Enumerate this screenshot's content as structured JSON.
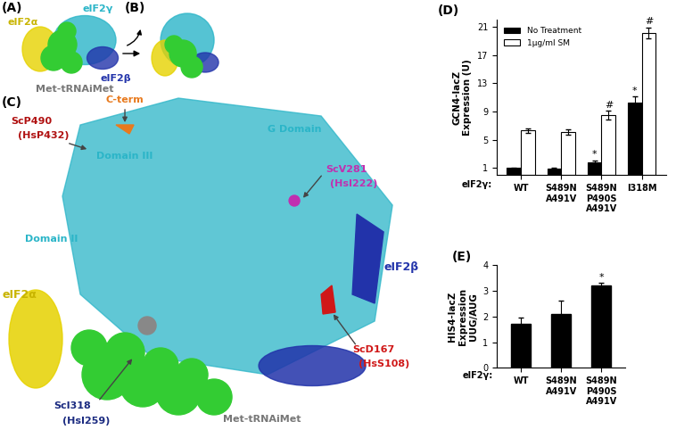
{
  "panels": [
    {
      "panel": "(A)",
      "labels": [
        {
          "text": "eIF2γ",
          "color": "#2bb5c8"
        },
        {
          "text": "eIF2α",
          "color": "#c8b400"
        },
        {
          "text": "eIF2β",
          "color": "#2233aa"
        },
        {
          "text": "Met-tRNAiMet",
          "color": "#777777"
        }
      ]
    },
    {
      "panel": "(B)",
      "labels": []
    },
    {
      "panel": "(C)",
      "labels": [
        {
          "text": "C-term",
          "color": "#e87a1e"
        },
        {
          "text": "Domain III",
          "color": "#2bb5c8"
        },
        {
          "text": "G Domain",
          "color": "#2bb5c8"
        },
        {
          "text": "ScP490",
          "color": "#b01010"
        },
        {
          "text": "(HsP432)",
          "color": "#b01010"
        },
        {
          "text": "ScV281",
          "color": "#c030b0"
        },
        {
          "text": "(HsI222)",
          "color": "#c030b0"
        },
        {
          "text": "Domain II",
          "color": "#2bb5c8"
        },
        {
          "text": "eIF2β",
          "color": "#2233aa"
        },
        {
          "text": "ScD167",
          "color": "#d01818"
        },
        {
          "text": "(HsS108)",
          "color": "#d01818"
        },
        {
          "text": "eIF2α",
          "color": "#c8b400"
        },
        {
          "text": "Met-tRNAiMet",
          "color": "#777777"
        },
        {
          "text": "ScI318",
          "color": "#1a2a80"
        },
        {
          "text": "(HsI259)",
          "color": "#1a2a80"
        }
      ]
    }
  ],
  "chart_data": [
    {
      "panel": "(D)",
      "type": "bar",
      "categories": [
        "WT",
        "S489N\nA491V",
        "S489N\nP490S\nA491V",
        "I318M"
      ],
      "xlabel": "eIF2γ:",
      "ylabel": "GCN4-lacZ\nExpression (U)",
      "ylim": [
        0,
        22
      ],
      "yticks": [
        1,
        5,
        9,
        13,
        17,
        21
      ],
      "legend": "upper left",
      "series": [
        {
          "name": "No Treatment",
          "color": "#000000",
          "values": [
            1.0,
            0.9,
            1.8,
            10.3
          ],
          "errors": [
            0.1,
            0.1,
            0.3,
            0.8
          ],
          "marks": [
            null,
            null,
            "*",
            "*"
          ]
        },
        {
          "name": "1μg/ml SM",
          "color": "#ffffff",
          "values": [
            6.3,
            6.1,
            8.5,
            20.1
          ],
          "errors": [
            0.3,
            0.4,
            0.6,
            0.8
          ],
          "marks": [
            null,
            null,
            "#",
            "#"
          ]
        }
      ]
    },
    {
      "panel": "(E)",
      "type": "bar",
      "categories": [
        "WT",
        "S489N\nA491V",
        "S489N\nP490S\nA491V"
      ],
      "xlabel": "eIF2γ:",
      "ylabel": "HIS4-lacZ\nExpression\nUUG/AUG",
      "ylim": [
        0,
        4
      ],
      "yticks": [
        0,
        1,
        2,
        3,
        4
      ],
      "color": "#000000",
      "values": [
        1.7,
        2.1,
        3.2
      ],
      "errors": [
        0.25,
        0.5,
        0.12
      ],
      "marks": [
        null,
        null,
        "*"
      ]
    }
  ]
}
